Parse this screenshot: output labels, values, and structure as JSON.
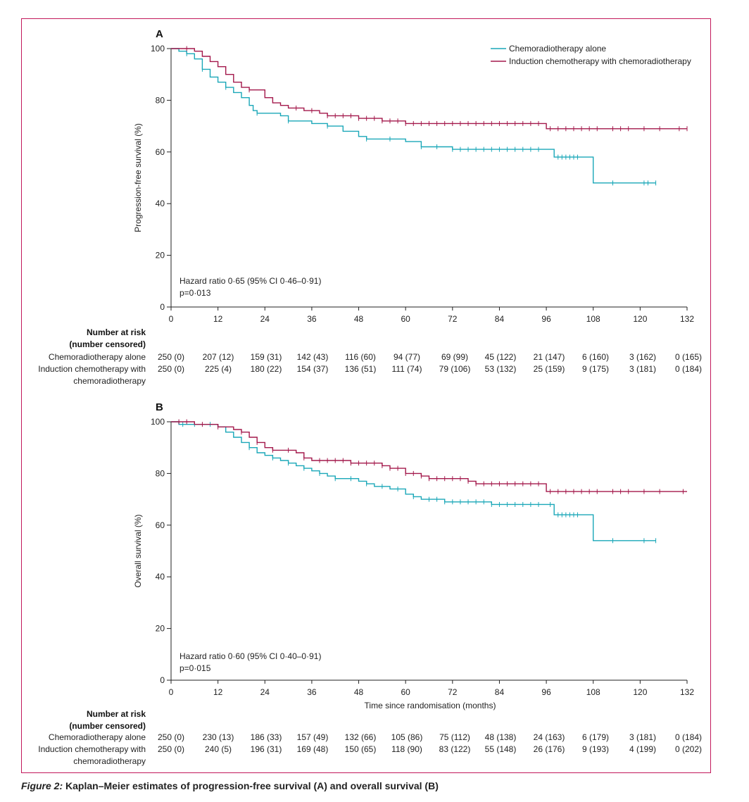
{
  "colors": {
    "cra": "#1aa7b8",
    "ic": "#a3184b",
    "frame": "#c2185b"
  },
  "legend": [
    "Chemoradiotherapy alone",
    "Induction chemotherapy with chemoradiotherapy"
  ],
  "caption": {
    "label": "Figure 2:",
    "text": " Kaplan–Meier estimates of progression-free survival (A) and overall survival (B)"
  },
  "chart_data": [
    {
      "type": "line",
      "panel": "A",
      "title": "A",
      "ylabel": "Progression-free survival (%)",
      "xlabel": "",
      "xlim": [
        0,
        132
      ],
      "ylim": [
        0,
        100
      ],
      "x_ticks": [
        0,
        12,
        24,
        36,
        48,
        60,
        72,
        84,
        96,
        108,
        120,
        132
      ],
      "y_ticks": [
        0,
        20,
        40,
        60,
        80,
        100
      ],
      "annotation": [
        "Hazard ratio 0·65 (95% CI 0·46–0·91)",
        "p=0·013"
      ],
      "series": [
        {
          "name": "Chemoradiotherapy alone",
          "points": [
            [
              0,
              100
            ],
            [
              2,
              99
            ],
            [
              4,
              98
            ],
            [
              6,
              96
            ],
            [
              8,
              92
            ],
            [
              10,
              89
            ],
            [
              12,
              87
            ],
            [
              14,
              85
            ],
            [
              16,
              83
            ],
            [
              18,
              81
            ],
            [
              20,
              78
            ],
            [
              21,
              76
            ],
            [
              22,
              75
            ],
            [
              28,
              74
            ],
            [
              30,
              72
            ],
            [
              36,
              71
            ],
            [
              40,
              70
            ],
            [
              44,
              68
            ],
            [
              48,
              66
            ],
            [
              50,
              65
            ],
            [
              56,
              65
            ],
            [
              60,
              64
            ],
            [
              64,
              62
            ],
            [
              68,
              62
            ],
            [
              72,
              61
            ],
            [
              80,
              61
            ],
            [
              88,
              61
            ],
            [
              97,
              61
            ],
            [
              98,
              58
            ],
            [
              108,
              58
            ],
            [
              108,
              48
            ],
            [
              124,
              48
            ]
          ],
          "censor_x": [
            4,
            8,
            14,
            22,
            30,
            40,
            50,
            56,
            64,
            68,
            72,
            74,
            76,
            78,
            80,
            82,
            84,
            86,
            88,
            90,
            92,
            94,
            99,
            100,
            101,
            102,
            103,
            104,
            113,
            121,
            122,
            124
          ]
        },
        {
          "name": "Induction chemotherapy with chemoradiotherapy",
          "points": [
            [
              0,
              100
            ],
            [
              6,
              99
            ],
            [
              8,
              97
            ],
            [
              10,
              95
            ],
            [
              12,
              93
            ],
            [
              14,
              90
            ],
            [
              16,
              87
            ],
            [
              18,
              85
            ],
            [
              20,
              84
            ],
            [
              24,
              81
            ],
            [
              26,
              79
            ],
            [
              28,
              78
            ],
            [
              30,
              77
            ],
            [
              34,
              76
            ],
            [
              38,
              75
            ],
            [
              40,
              74
            ],
            [
              48,
              73
            ],
            [
              54,
              72
            ],
            [
              58,
              72
            ],
            [
              60,
              71
            ],
            [
              86,
              71
            ],
            [
              96,
              71
            ],
            [
              96,
              69
            ],
            [
              132,
              69
            ]
          ],
          "censor_x": [
            4,
            20,
            32,
            36,
            40,
            42,
            44,
            46,
            48,
            50,
            52,
            54,
            56,
            58,
            60,
            62,
            64,
            66,
            68,
            70,
            72,
            74,
            76,
            78,
            80,
            82,
            84,
            86,
            88,
            90,
            92,
            94,
            97,
            99,
            101,
            103,
            105,
            107,
            109,
            113,
            115,
            117,
            121,
            125,
            130,
            132
          ]
        }
      ],
      "risk_header": [
        "Number at risk",
        "(number censored)"
      ],
      "risk_rows": [
        {
          "label": [
            "Chemoradiotherapy alone"
          ],
          "values": [
            "250 (0)",
            "207 (12)",
            "159 (31)",
            "142 (43)",
            "116 (60)",
            "94 (77)",
            "69 (99)",
            "45 (122)",
            "21 (147)",
            "6 (160)",
            "3 (162)",
            "0 (165)"
          ]
        },
        {
          "label": [
            "Induction chemotherapy with",
            "chemoradiotherapy"
          ],
          "values": [
            "250 (0)",
            "225 (4)",
            "180 (22)",
            "154 (37)",
            "136 (51)",
            "111 (74)",
            "79 (106)",
            "53 (132)",
            "25 (159)",
            "9 (175)",
            "3 (181)",
            "0 (184)"
          ]
        }
      ]
    },
    {
      "type": "line",
      "panel": "B",
      "title": "B",
      "ylabel": "Overall survival (%)",
      "xlabel": "Time since randomisation (months)",
      "xlim": [
        0,
        132
      ],
      "ylim": [
        0,
        100
      ],
      "x_ticks": [
        0,
        12,
        24,
        36,
        48,
        60,
        72,
        84,
        96,
        108,
        120,
        132
      ],
      "y_ticks": [
        0,
        20,
        40,
        60,
        80,
        100
      ],
      "annotation": [
        "Hazard ratio 0·60 (95% CI 0·40–0·91)",
        "p=0·015"
      ],
      "series": [
        {
          "name": "Chemoradiotherapy alone",
          "points": [
            [
              0,
              100
            ],
            [
              2,
              99
            ],
            [
              8,
              99
            ],
            [
              12,
              98
            ],
            [
              14,
              96
            ],
            [
              16,
              94
            ],
            [
              18,
              92
            ],
            [
              20,
              90
            ],
            [
              22,
              88
            ],
            [
              24,
              87
            ],
            [
              26,
              86
            ],
            [
              28,
              85
            ],
            [
              30,
              84
            ],
            [
              32,
              83
            ],
            [
              34,
              82
            ],
            [
              36,
              81
            ],
            [
              38,
              80
            ],
            [
              40,
              79
            ],
            [
              42,
              78
            ],
            [
              46,
              78
            ],
            [
              48,
              77
            ],
            [
              50,
              76
            ],
            [
              52,
              75
            ],
            [
              56,
              74
            ],
            [
              60,
              72
            ],
            [
              62,
              71
            ],
            [
              64,
              70
            ],
            [
              70,
              69
            ],
            [
              80,
              69
            ],
            [
              82,
              68
            ],
            [
              96,
              68
            ],
            [
              98,
              64
            ],
            [
              108,
              64
            ],
            [
              108,
              54
            ],
            [
              124,
              54
            ]
          ],
          "censor_x": [
            3,
            6,
            10,
            20,
            26,
            30,
            34,
            38,
            42,
            46,
            50,
            54,
            58,
            62,
            66,
            68,
            70,
            72,
            74,
            76,
            78,
            80,
            82,
            84,
            86,
            88,
            90,
            92,
            94,
            97,
            99,
            100,
            101,
            102,
            103,
            104,
            113,
            121,
            124
          ]
        },
        {
          "name": "Induction chemotherapy with chemoradiotherapy",
          "points": [
            [
              0,
              100
            ],
            [
              6,
              99
            ],
            [
              10,
              99
            ],
            [
              12,
              98
            ],
            [
              16,
              97
            ],
            [
              18,
              96
            ],
            [
              20,
              94
            ],
            [
              22,
              92
            ],
            [
              24,
              90
            ],
            [
              26,
              89
            ],
            [
              32,
              88
            ],
            [
              34,
              86
            ],
            [
              36,
              85
            ],
            [
              44,
              85
            ],
            [
              46,
              84
            ],
            [
              52,
              84
            ],
            [
              54,
              83
            ],
            [
              56,
              82
            ],
            [
              60,
              80
            ],
            [
              64,
              79
            ],
            [
              66,
              78
            ],
            [
              74,
              78
            ],
            [
              76,
              77
            ],
            [
              78,
              76
            ],
            [
              84,
              76
            ],
            [
              96,
              76
            ],
            [
              96,
              73
            ],
            [
              132,
              73
            ]
          ],
          "censor_x": [
            2,
            4,
            8,
            12,
            18,
            22,
            26,
            30,
            34,
            38,
            40,
            42,
            44,
            46,
            48,
            50,
            52,
            54,
            56,
            58,
            60,
            62,
            64,
            66,
            68,
            70,
            72,
            74,
            76,
            78,
            80,
            82,
            84,
            86,
            88,
            90,
            92,
            94,
            97,
            99,
            101,
            103,
            105,
            107,
            109,
            113,
            115,
            117,
            121,
            125,
            131
          ]
        }
      ],
      "risk_header": [
        "Number at risk",
        "(number censored)"
      ],
      "risk_rows": [
        {
          "label": [
            "Chemoradiotherapy alone"
          ],
          "values": [
            "250 (0)",
            "230 (13)",
            "186 (33)",
            "157 (49)",
            "132 (66)",
            "105 (86)",
            "75 (112)",
            "48 (138)",
            "24 (163)",
            "6 (179)",
            "3 (181)",
            "0 (184)"
          ]
        },
        {
          "label": [
            "Induction chemotherapy with",
            "chemoradiotherapy"
          ],
          "values": [
            "250 (0)",
            "240 (5)",
            "196 (31)",
            "169 (48)",
            "150 (65)",
            "118 (90)",
            "83 (122)",
            "55 (148)",
            "26 (176)",
            "9 (193)",
            "4 (199)",
            "0 (202)"
          ]
        }
      ]
    }
  ]
}
